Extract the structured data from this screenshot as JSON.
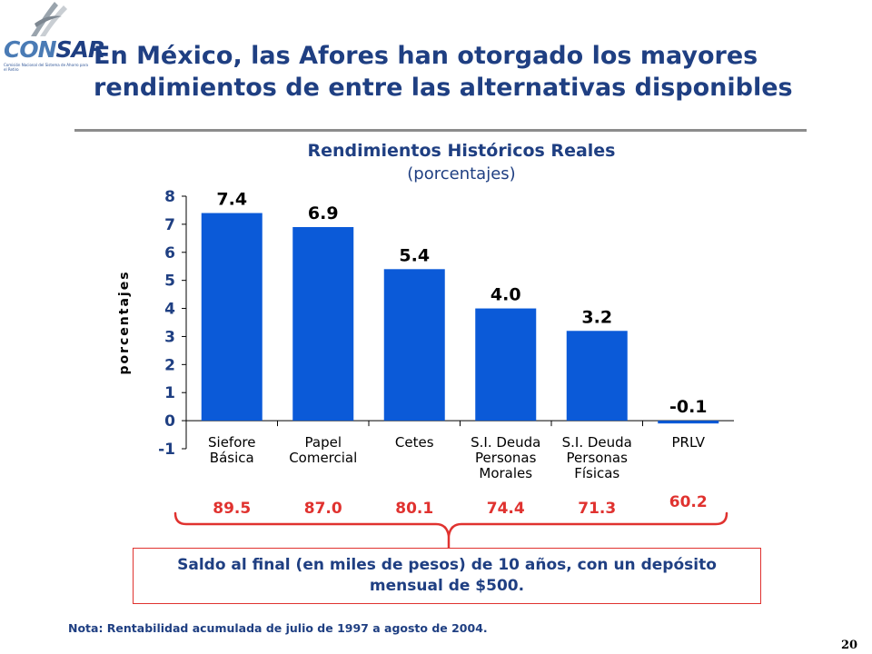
{
  "page": {
    "title": "En México, las Afores han otorgado los mayores rendimientos de entre las alternativas disponibles",
    "number": "20"
  },
  "logo": {
    "text_light": "CON",
    "text_strong": "SAR",
    "subtitle": "Comisión Nacional del Sistema de Ahorro para el Retiro",
    "colors": {
      "light": "#4a7bb5",
      "dark": "#1f3f82"
    }
  },
  "colors": {
    "bar": "#0b5ad8",
    "title": "#1f3f82",
    "accent": "#e0322f",
    "rule": "#8c8c8c"
  },
  "chart_data": {
    "type": "bar",
    "title": "Rendimientos Históricos Reales",
    "subtitle": "(porcentajes)",
    "ylabel": "porcentajes",
    "xlabel": "",
    "ylim": [
      -1,
      8
    ],
    "yticks": [
      8,
      7,
      6,
      5,
      4,
      3,
      2,
      1,
      0,
      -1
    ],
    "categories": [
      [
        "Siefore",
        "Básica"
      ],
      [
        "Papel",
        "Comercial"
      ],
      [
        "Cetes"
      ],
      [
        "S.I. Deuda",
        "Personas",
        "Morales"
      ],
      [
        "S.I. Deuda",
        "Personas",
        "Físicas"
      ],
      [
        "PRLV"
      ]
    ],
    "values": [
      7.4,
      6.9,
      5.4,
      4.0,
      3.2,
      -0.1
    ],
    "value_labels": [
      "7.4",
      "6.9",
      "5.4",
      "4.0",
      "3.2",
      "-0.1"
    ],
    "grid": false,
    "legend": "none"
  },
  "saldos": [
    "89.5",
    "87.0",
    "80.1",
    "74.4",
    "71.3",
    "60.2"
  ],
  "saldo_box": {
    "text": "Saldo al final (en miles de pesos) de 10 años, con un depósito mensual de $500."
  },
  "note": "Nota: Rentabilidad acumulada de julio de 1997 a agosto de 2004."
}
